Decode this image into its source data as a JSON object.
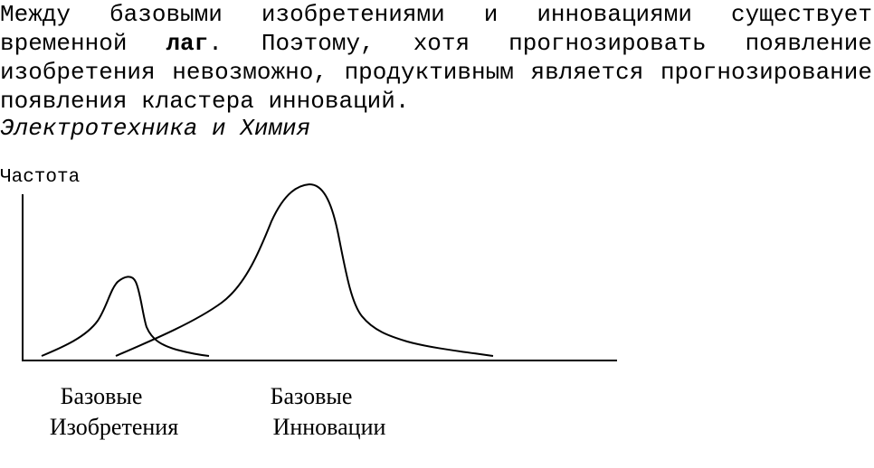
{
  "text": {
    "part1": "Между базовыми изобретениями и инновациями существует временной ",
    "bold_word": "лаг",
    "part2": ". Поэтому, хотя прогнозировать появление изобретения невозможно, продуктивным является прогнозирование появления кластера инноваций.",
    "subtitle": "Электротехника и Химия"
  },
  "diagram": {
    "ylabel": "Частота",
    "captions": {
      "inventions": [
        "Базовые",
        "Изобретения"
      ],
      "innovations": [
        "Базовые",
        "Инновации"
      ]
    }
  }
}
